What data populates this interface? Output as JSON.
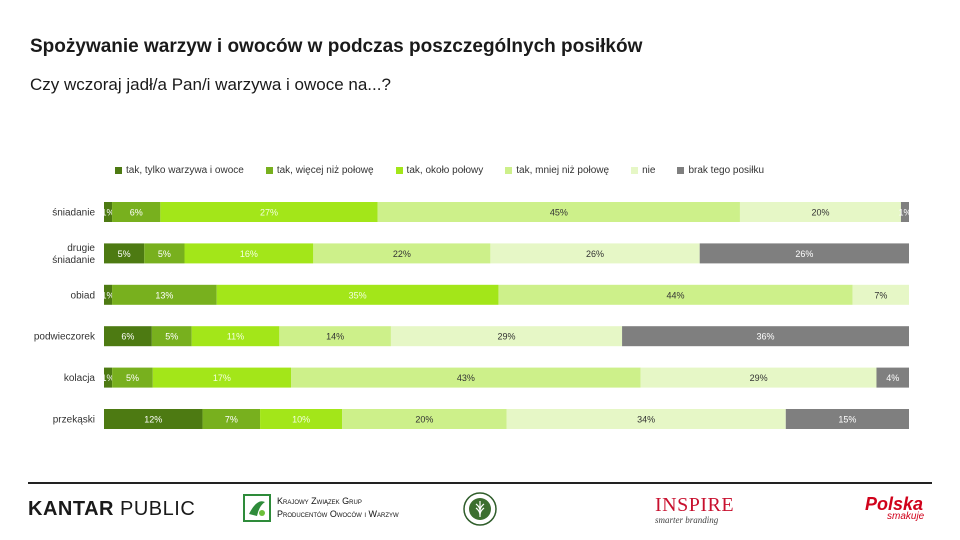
{
  "title": "Spożywanie warzyw i owoców w podczas poszczególnych posiłków",
  "subtitle": "Czy wczoraj jadł/a Pan/i warzywa i owoce na...?",
  "chart_data": {
    "type": "bar",
    "orientation": "horizontal",
    "stacked": true,
    "normalized": true,
    "categories": [
      [
        "śniadanie"
      ],
      [
        "drugie",
        "śniadanie"
      ],
      [
        "obiad"
      ],
      [
        "podwieczorek"
      ],
      [
        "kolacja"
      ],
      [
        "przekąski"
      ]
    ],
    "series": [
      {
        "name": "tak, tylko warzywa i owoce",
        "color": "#4d7a12",
        "values": [
          1,
          5,
          1,
          6,
          1,
          12
        ],
        "labels": [
          "1%",
          "5%",
          "1%",
          "6%",
          "1%",
          "12%"
        ]
      },
      {
        "name": "tak, więcej niż połowę",
        "color": "#78b01e",
        "values": [
          6,
          5,
          13,
          5,
          5,
          7
        ],
        "labels": [
          "6%",
          "5%",
          "13%",
          "5%",
          "5%",
          "7%"
        ]
      },
      {
        "name": "tak, około połowy",
        "color": "#a3e619",
        "values": [
          27,
          16,
          35,
          11,
          17,
          10
        ],
        "labels": [
          "27%",
          "16%",
          "35%",
          "11%",
          "17%",
          "10%"
        ]
      },
      {
        "name": "tak, mniej niż połowę",
        "color": "#cdf08a",
        "values": [
          45,
          22,
          44,
          14,
          43,
          20
        ],
        "labels": [
          "45%",
          "22%",
          "44%",
          "14%",
          "43%",
          "20%"
        ]
      },
      {
        "name": "nie",
        "color": "#e6f7c6",
        "values": [
          20,
          26,
          7,
          29,
          29,
          34
        ],
        "labels": [
          "20%",
          "26%",
          "7%",
          "29%",
          "29%",
          "34%"
        ]
      },
      {
        "name": "brak tego posiłku",
        "color": "#7f7f7f",
        "values": [
          1,
          26,
          0,
          36,
          4,
          15
        ],
        "labels": [
          "1%",
          "26%",
          "",
          "36%",
          "4%",
          "15%"
        ]
      }
    ],
    "legend_position": "top",
    "grid": false
  },
  "footer": {
    "kantar": {
      "bold": "KANTAR",
      "rest": " PUBLIC"
    },
    "kzgp": {
      "line1": "Krajowy Związek Grup",
      "line2": "Producentów Owoców i Warzyw"
    },
    "inspire": {
      "main": "INSPIRE",
      "sub": "smarter branding"
    },
    "polska": {
      "main": "Polska",
      "sub": "smakuje"
    }
  }
}
